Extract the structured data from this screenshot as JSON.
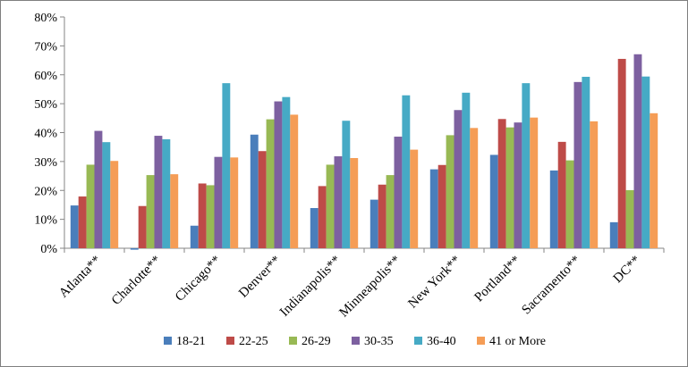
{
  "chart_data": {
    "type": "bar",
    "title": "",
    "xlabel": "",
    "ylabel": "",
    "ylim": [
      0,
      80
    ],
    "yticks": [
      0,
      10,
      20,
      30,
      40,
      50,
      60,
      70,
      80
    ],
    "ytick_labels": [
      "0%",
      "10%",
      "20%",
      "30%",
      "40%",
      "50%",
      "60%",
      "70%",
      "80%"
    ],
    "grid": false,
    "legend_position": "bottom",
    "categories": [
      "Atlanta**",
      "Charlotte**",
      "Chicago**",
      "Denver**",
      "Indianapolis**",
      "Minneapolis**",
      "New York**",
      "Portland**",
      "Sacramento**",
      "DC**"
    ],
    "series": [
      {
        "name": "18-21",
        "color": "#4a7ebb",
        "values": [
          14.8,
          -0.5,
          7.8,
          39.3,
          13.9,
          16.8,
          27.3,
          32.3,
          26.9,
          9.0
        ]
      },
      {
        "name": "22-25",
        "color": "#be4b48",
        "values": [
          17.9,
          14.6,
          22.4,
          33.6,
          21.5,
          22.0,
          28.8,
          44.7,
          36.8,
          65.5
        ]
      },
      {
        "name": "26-29",
        "color": "#98b954",
        "values": [
          28.9,
          25.3,
          21.8,
          44.6,
          28.9,
          25.3,
          39.1,
          41.8,
          30.4,
          20.1
        ]
      },
      {
        "name": "30-35",
        "color": "#7d60a0",
        "values": [
          40.6,
          38.9,
          31.6,
          50.8,
          31.8,
          38.6,
          47.8,
          43.5,
          57.5,
          67.1
        ]
      },
      {
        "name": "36-40",
        "color": "#46aac5",
        "values": [
          36.7,
          37.7,
          57.1,
          52.3,
          44.1,
          52.9,
          53.8,
          57.1,
          59.3,
          59.4
        ]
      },
      {
        "name": "41 or More",
        "color": "#f59d56",
        "values": [
          30.2,
          25.6,
          31.4,
          46.2,
          31.2,
          34.1,
          41.6,
          45.2,
          43.9,
          46.7
        ]
      }
    ]
  }
}
